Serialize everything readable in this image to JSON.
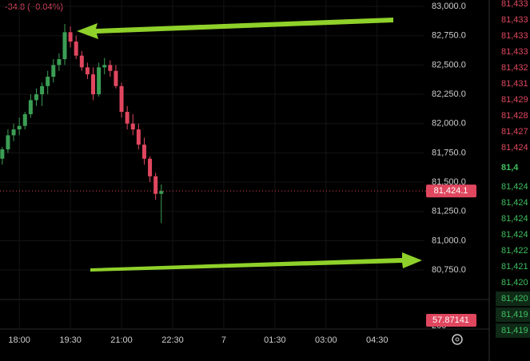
{
  "chart_data": {
    "type": "candlestick",
    "change_label": "-34.8 (−0.04%)",
    "x": [
      1050,
      1060,
      1070,
      1080,
      1090,
      1100,
      1110,
      1120,
      1130,
      1140,
      1150,
      1160,
      1170,
      1180,
      1190,
      1200,
      1210,
      1220,
      1230,
      1240,
      1250,
      1260,
      1270,
      1280,
      1290,
      1300,
      1310,
      1320,
      1330
    ],
    "open": [
      81700,
      81780,
      81900,
      81950,
      81980,
      82080,
      82200,
      82250,
      82320,
      82400,
      82500,
      82550,
      82780,
      82700,
      82580,
      82480,
      82420,
      82250,
      82480,
      82500,
      82450,
      82320,
      82100,
      82000,
      81950,
      81820,
      81700,
      81550,
      81400
    ],
    "high": [
      81800,
      81950,
      82000,
      82050,
      82100,
      82250,
      82300,
      82350,
      82450,
      82550,
      82600,
      82850,
      82830,
      82750,
      82620,
      82520,
      82480,
      82520,
      82560,
      82540,
      82500,
      82350,
      82150,
      82080,
      82000,
      81880,
      81720,
      81580,
      81480
    ],
    "low": [
      81650,
      81750,
      81850,
      81900,
      81950,
      82050,
      82150,
      82150,
      82250,
      82350,
      82450,
      82500,
      82650,
      82550,
      82450,
      82380,
      82200,
      82230,
      82420,
      82400,
      82300,
      82050,
      81950,
      81900,
      81780,
      81650,
      81500,
      81350,
      81150
    ],
    "close": [
      81780,
      81900,
      81950,
      81980,
      82080,
      82200,
      82250,
      82320,
      82400,
      82500,
      82550,
      82780,
      82700,
      82580,
      82480,
      82420,
      82250,
      82480,
      82500,
      82450,
      82320,
      82100,
      82000,
      81950,
      81820,
      81700,
      81550,
      81400,
      81424
    ],
    "up_color": "#3b9e54",
    "down_color": "#e0475f",
    "xlim": [
      1046,
      1792
    ],
    "xticks": [
      {
        "value": 1080,
        "label": "18:00"
      },
      {
        "value": 1170,
        "label": "19:30"
      },
      {
        "value": 1260,
        "label": "21:00"
      },
      {
        "value": 1350,
        "label": "22:30"
      },
      {
        "value": 1440,
        "label": "7"
      },
      {
        "value": 1530,
        "label": "01:30"
      },
      {
        "value": 1620,
        "label": "03:00"
      },
      {
        "value": 1710,
        "label": "04:30"
      }
    ],
    "ylim": [
      80498,
      83055
    ],
    "yticks": [
      {
        "value": 83000,
        "label": "83,000.0"
      },
      {
        "value": 82750,
        "label": "82,750.0"
      },
      {
        "value": 82500,
        "label": "82,500.0"
      },
      {
        "value": 82250,
        "label": "82,250.0"
      },
      {
        "value": 82000,
        "label": "82,000.0"
      },
      {
        "value": 81750,
        "label": "81,750.0"
      },
      {
        "value": 81500,
        "label": "81,500.0"
      },
      {
        "value": 81250,
        "label": "81,250.0"
      },
      {
        "value": 81000,
        "label": "81,000.0"
      },
      {
        "value": 80750,
        "label": "80,750.0"
      }
    ],
    "last_price": {
      "value": 81424.1,
      "label": "81,424.1"
    },
    "grid": true,
    "volume_axis_label": "200",
    "volume_value_label": "57.87141"
  },
  "order_book": {
    "asks": [
      "81,433",
      "81,433",
      "81,433",
      "81,433",
      "81,432",
      "81,431",
      "81,429",
      "81,428",
      "81,427",
      "81,424"
    ],
    "last": "81,4",
    "bids": [
      "81,424",
      "81,424",
      "81,424",
      "81,424",
      "81,422",
      "81,421",
      "81,420",
      "81,420",
      "81,419",
      "81,419"
    ]
  }
}
